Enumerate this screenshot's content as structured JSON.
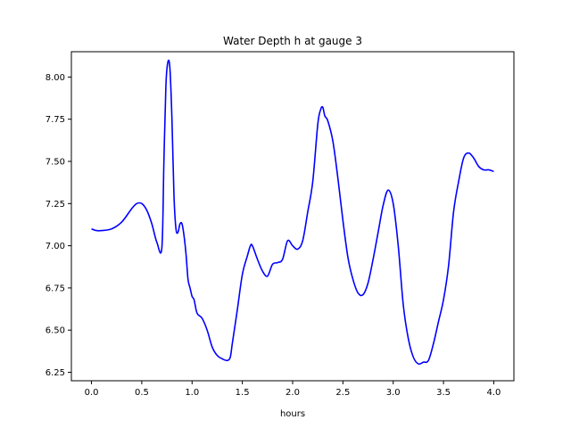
{
  "chart_data": {
    "type": "line",
    "title": "Water Depth h at gauge 3",
    "xlabel": "hours",
    "ylabel": "",
    "xlim": [
      -0.2,
      4.2
    ],
    "ylim": [
      6.2,
      8.15
    ],
    "xticks": [
      0.0,
      0.5,
      1.0,
      1.5,
      2.0,
      2.5,
      3.0,
      3.5,
      4.0
    ],
    "xtick_labels": [
      "0.0",
      "0.5",
      "1.0",
      "1.5",
      "2.0",
      "2.5",
      "3.0",
      "3.5",
      "4.0"
    ],
    "yticks": [
      6.25,
      6.5,
      6.75,
      7.0,
      7.25,
      7.5,
      7.75,
      8.0
    ],
    "ytick_labels": [
      "6.25",
      "6.50",
      "6.75",
      "7.00",
      "7.25",
      "7.50",
      "7.75",
      "8.00"
    ],
    "grid": false,
    "series": [
      {
        "color": "#0000ff",
        "x": [
          0.0,
          0.05,
          0.1,
          0.2,
          0.3,
          0.4,
          0.45,
          0.5,
          0.55,
          0.6,
          0.65,
          0.7,
          0.72,
          0.74,
          0.76,
          0.78,
          0.8,
          0.82,
          0.84,
          0.86,
          0.88,
          0.9,
          0.92,
          0.94,
          0.96,
          0.98,
          1.0,
          1.02,
          1.05,
          1.1,
          1.15,
          1.2,
          1.25,
          1.3,
          1.35,
          1.38,
          1.4,
          1.45,
          1.5,
          1.55,
          1.58,
          1.6,
          1.65,
          1.7,
          1.75,
          1.8,
          1.85,
          1.9,
          1.95,
          2.0,
          2.05,
          2.1,
          2.15,
          2.2,
          2.25,
          2.28,
          2.3,
          2.32,
          2.35,
          2.4,
          2.45,
          2.5,
          2.55,
          2.6,
          2.65,
          2.7,
          2.75,
          2.8,
          2.85,
          2.9,
          2.95,
          3.0,
          3.05,
          3.1,
          3.15,
          3.2,
          3.25,
          3.3,
          3.35,
          3.4,
          3.45,
          3.5,
          3.55,
          3.6,
          3.65,
          3.7,
          3.75,
          3.8,
          3.85,
          3.9,
          3.95,
          4.0
        ],
        "y": [
          7.1,
          7.09,
          7.09,
          7.1,
          7.14,
          7.22,
          7.25,
          7.25,
          7.21,
          7.13,
          7.02,
          6.99,
          7.5,
          7.95,
          8.09,
          8.05,
          7.75,
          7.3,
          7.1,
          7.08,
          7.13,
          7.13,
          7.06,
          6.95,
          6.8,
          6.75,
          6.7,
          6.68,
          6.6,
          6.57,
          6.5,
          6.4,
          6.35,
          6.33,
          6.32,
          6.34,
          6.42,
          6.62,
          6.83,
          6.94,
          7.0,
          7.0,
          6.92,
          6.85,
          6.82,
          6.89,
          6.9,
          6.92,
          7.03,
          7.0,
          6.98,
          7.03,
          7.2,
          7.38,
          7.72,
          7.81,
          7.82,
          7.77,
          7.74,
          7.62,
          7.4,
          7.15,
          6.93,
          6.8,
          6.72,
          6.71,
          6.78,
          6.92,
          7.08,
          7.24,
          7.33,
          7.25,
          7.0,
          6.65,
          6.45,
          6.34,
          6.3,
          6.31,
          6.32,
          6.42,
          6.55,
          6.68,
          6.88,
          7.2,
          7.38,
          7.52,
          7.55,
          7.52,
          7.47,
          7.45,
          7.45,
          7.44
        ]
      }
    ]
  }
}
